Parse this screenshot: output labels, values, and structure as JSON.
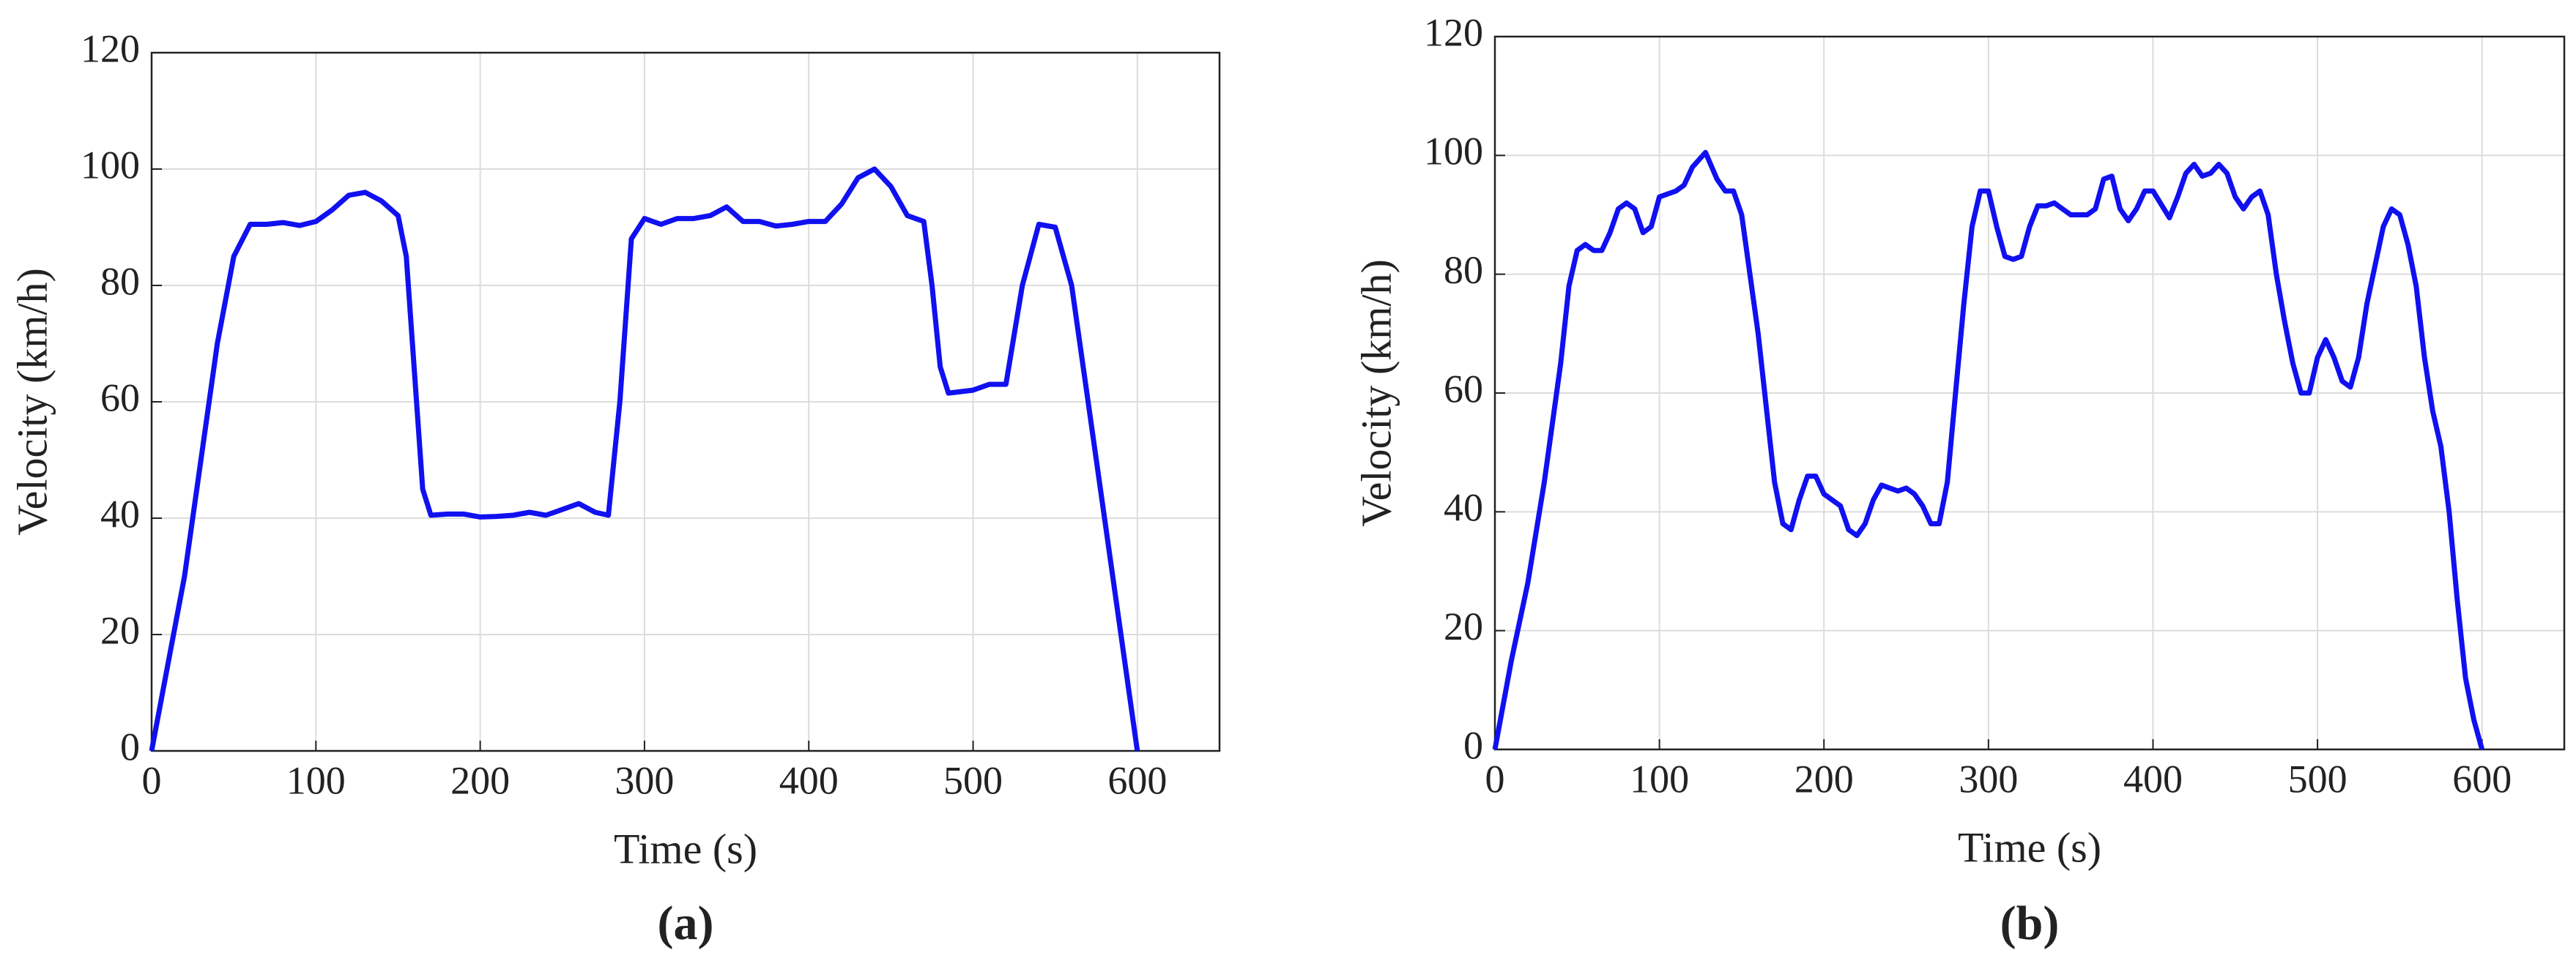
{
  "chart_data": [
    {
      "type": "line",
      "xlabel": "Time (s)",
      "ylabel": "Velocity (km/h)",
      "caption": "(a)",
      "xlim": [
        0,
        650
      ],
      "ylim": [
        0,
        120
      ],
      "xticks": [
        0,
        100,
        200,
        300,
        400,
        500,
        600
      ],
      "yticks": [
        0,
        20,
        40,
        60,
        80,
        100,
        120
      ],
      "grid": true,
      "series": [
        {
          "color": "#1010f0",
          "x": [
            0,
            10,
            20,
            30,
            40,
            50,
            60,
            70,
            80,
            90,
            100,
            110,
            120,
            130,
            140,
            150,
            155,
            160,
            165,
            170,
            180,
            190,
            200,
            210,
            220,
            230,
            240,
            250,
            260,
            270,
            278,
            285,
            292,
            300,
            310,
            320,
            330,
            340,
            350,
            360,
            370,
            380,
            390,
            400,
            410,
            420,
            430,
            440,
            450,
            460,
            470,
            475,
            480,
            485,
            500,
            510,
            520,
            530,
            540,
            550,
            560,
            570,
            580,
            590,
            600
          ],
          "values": [
            0,
            15,
            30,
            50,
            70,
            85,
            90.5,
            90.5,
            90.8,
            90.3,
            91,
            93,
            95.5,
            96,
            94.5,
            92,
            85,
            65,
            45,
            40.5,
            40.7,
            40.7,
            40.2,
            40.3,
            40.5,
            41,
            40.5,
            41.5,
            42.5,
            41,
            40.5,
            60,
            88,
            91.5,
            90.5,
            91.5,
            91.5,
            92,
            93.5,
            91,
            91,
            90.2,
            90.5,
            91,
            91,
            94,
            98.5,
            100,
            97,
            92,
            91,
            80,
            66,
            61.5,
            62,
            63,
            63,
            80,
            90.5,
            90,
            80,
            60,
            40,
            20,
            0
          ]
        }
      ]
    },
    {
      "type": "line",
      "xlabel": "Time (s)",
      "ylabel": "Velocity (km/h)",
      "caption": "(b)",
      "xlim": [
        0,
        650
      ],
      "ylim": [
        0,
        120
      ],
      "xticks": [
        0,
        100,
        200,
        300,
        400,
        500,
        600
      ],
      "yticks": [
        0,
        20,
        40,
        60,
        80,
        100,
        120
      ],
      "grid": true,
      "series": [
        {
          "color": "#1010f0",
          "x": [
            0,
            10,
            20,
            30,
            40,
            45,
            50,
            55,
            60,
            65,
            70,
            75,
            80,
            85,
            90,
            95,
            100,
            105,
            110,
            115,
            120,
            128,
            135,
            140,
            145,
            150,
            160,
            170,
            175,
            180,
            185,
            190,
            195,
            200,
            210,
            215,
            220,
            225,
            230,
            235,
            240,
            245,
            250,
            255,
            260,
            265,
            270,
            275,
            280,
            285,
            290,
            295,
            300,
            305,
            310,
            315,
            320,
            325,
            330,
            335,
            340,
            345,
            350,
            355,
            360,
            365,
            370,
            375,
            380,
            385,
            390,
            395,
            400,
            410,
            415,
            420,
            425,
            430,
            435,
            440,
            445,
            450,
            455,
            460,
            465,
            470,
            475,
            480,
            485,
            490,
            495,
            500,
            505,
            510,
            515,
            520,
            525,
            530,
            540,
            545,
            550,
            555,
            560,
            565,
            570,
            575,
            580,
            585,
            590,
            595,
            600
          ],
          "values": [
            0,
            15,
            28,
            45,
            65,
            78,
            84,
            85,
            84,
            84,
            87,
            91,
            92,
            91,
            87,
            88,
            93,
            93.5,
            94,
            95,
            98,
            100.5,
            96,
            94,
            94,
            90,
            70,
            45,
            38,
            37,
            42,
            46,
            46,
            43,
            41,
            37,
            36,
            38,
            42,
            44.5,
            44,
            43.5,
            44,
            43,
            41,
            38,
            38,
            45,
            60,
            75,
            88,
            94,
            94,
            88,
            83,
            82.5,
            83,
            88,
            91.5,
            91.5,
            92,
            91,
            90,
            90,
            90,
            91,
            96,
            96.5,
            91,
            89,
            91,
            94,
            94,
            89.5,
            93,
            97,
            98.5,
            96.5,
            97,
            98.5,
            97,
            93,
            91,
            93,
            94,
            90,
            80,
            72,
            65,
            60,
            60,
            66,
            69,
            66,
            62,
            61,
            66,
            75,
            88,
            91,
            90,
            85,
            78,
            66,
            57,
            51,
            40,
            25,
            12,
            5,
            0
          ]
        }
      ]
    }
  ]
}
